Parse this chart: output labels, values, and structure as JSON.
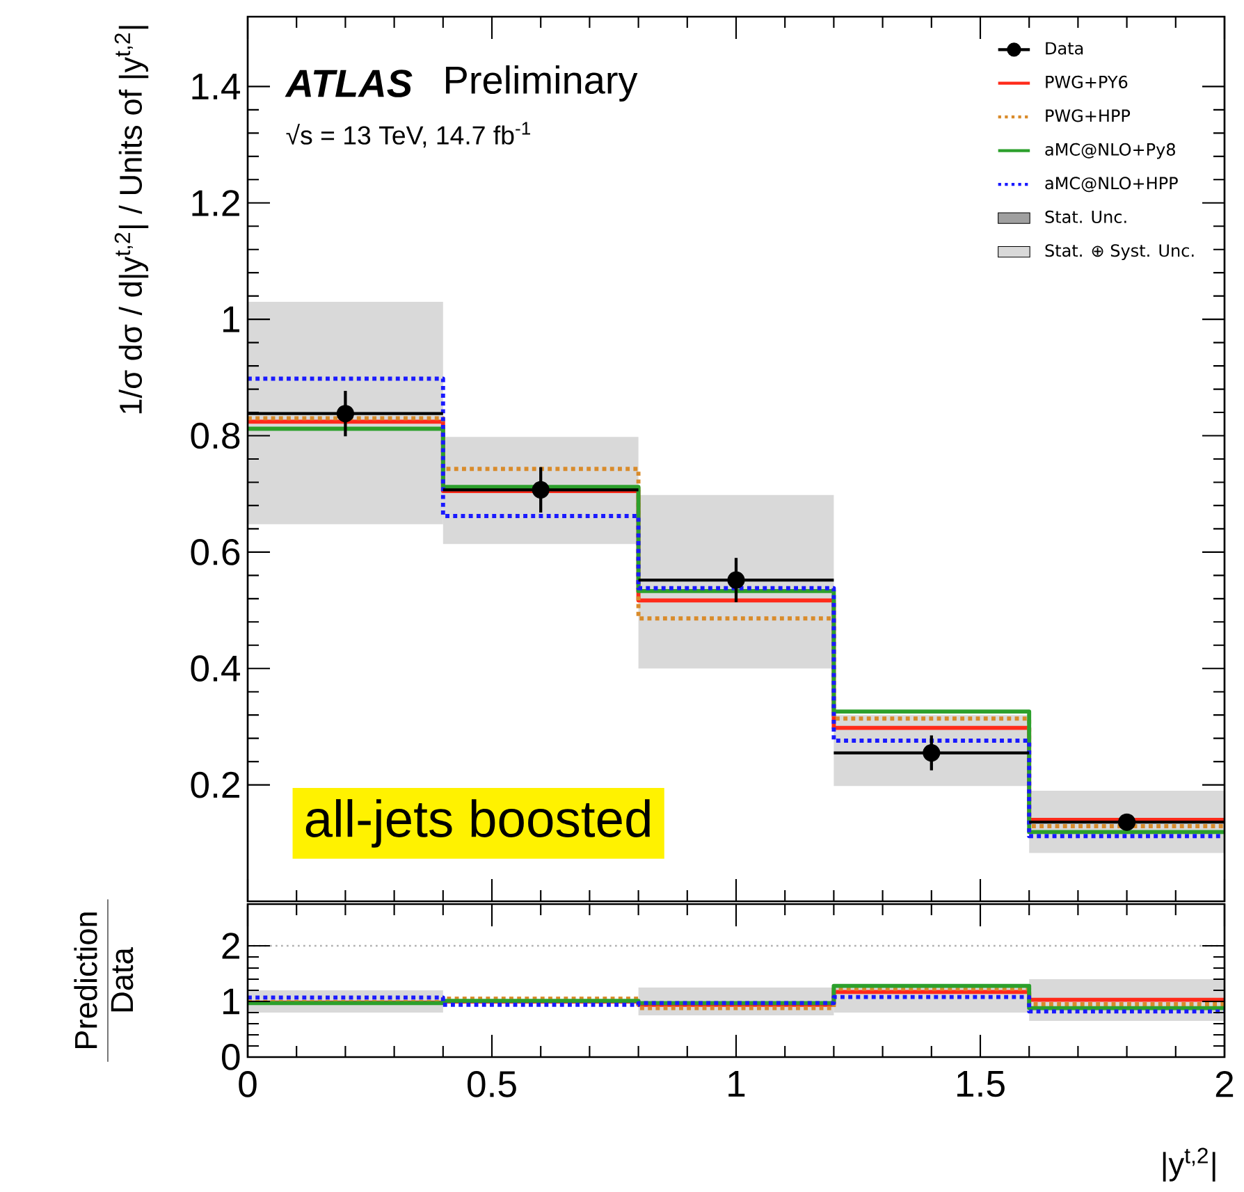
{
  "chart_data": [
    {
      "type": "histogram",
      "ylabel": "1/σ dσ / d|y$^{t,2}$| / Units of |y$^{t,2}$|",
      "xlim": [
        0,
        2
      ],
      "ylim": [
        0,
        1.52
      ],
      "xticks": [
        0,
        0.5,
        1,
        1.5,
        2
      ],
      "yticks": [
        0.2,
        0.4,
        0.6,
        0.8,
        1,
        1.2,
        1.4
      ],
      "tick_labels": "y",
      "legend": "top right",
      "annotations": [
        "ATLAS",
        "Preliminary",
        "√s = 13 TeV, 14.7 fb$^{-1}$",
        "all-jets boosted"
      ],
      "series": [
        {
          "name": "Data",
          "type": "scatter",
          "color": "#000000",
          "marker": "circle",
          "x": [
            0.2,
            0.6,
            1.0,
            1.4,
            1.8
          ],
          "values": [
            0.838,
            0.707,
            0.552,
            0.255,
            0.136
          ],
          "errors": [
            0.039,
            0.039,
            0.038,
            0.03,
            0.01
          ],
          "xerrors": [
            0.2,
            0.2,
            0.2,
            0.2,
            0.2
          ]
        },
        {
          "name": "PWG+PY6",
          "color": "#ff2a1a",
          "line_style": "solid",
          "bins": [
            0,
            0.4,
            0.8,
            1.2,
            1.6,
            2
          ],
          "values": [
            0.824,
            0.705,
            0.517,
            0.298,
            0.14
          ]
        },
        {
          "name": "PWG+HPP",
          "color": "#d98b2b",
          "line_style": "dotted",
          "bins": [
            0,
            0.4,
            0.8,
            1.2,
            1.6,
            2
          ],
          "values": [
            0.83,
            0.743,
            0.486,
            0.314,
            0.129
          ]
        },
        {
          "name": "aMC@NLO+Py8",
          "color": "#2ca02c",
          "line_style": "solid",
          "bins": [
            0,
            0.4,
            0.8,
            1.2,
            1.6,
            2
          ],
          "values": [
            0.812,
            0.712,
            0.533,
            0.326,
            0.119
          ]
        },
        {
          "name": "aMC@NLO+HPP",
          "color": "#1a1aff",
          "line_style": "dotted",
          "bins": [
            0,
            0.4,
            0.8,
            1.2,
            1.6,
            2
          ],
          "values": [
            0.898,
            0.662,
            0.538,
            0.276,
            0.112
          ]
        },
        {
          "name": "Stat. Unc.",
          "type": "bar",
          "color": "#a0a0a0",
          "values": [
            null,
            null,
            null,
            null,
            null
          ]
        },
        {
          "name": "Stat. ⊕ Syst. Unc.",
          "type": "bar",
          "color": "#d9d9d9",
          "x": [
            0.2,
            0.6,
            1.0,
            1.4,
            1.8
          ],
          "base": [
            0.648,
            0.614,
            0.4,
            0.198,
            0.083
          ],
          "values": [
            0.382,
            0.184,
            0.298,
            0.122,
            0.107
          ]
        }
      ]
    },
    {
      "type": "histogram",
      "xlabel": "|y$^{t,2}$|",
      "ylabel": "Prediction",
      "annotations": [
        "Data"
      ],
      "xlim": [
        0,
        2
      ],
      "ylim": [
        0,
        2.75
      ],
      "xticks": [
        0,
        0.5,
        1,
        1.5,
        2
      ],
      "yticks": [
        0,
        1,
        2
      ],
      "ref_lines": [
        {
          "axis": "y",
          "value": 2,
          "color": "#b0b0b0",
          "line_style": "dotted"
        }
      ],
      "series": [
        {
          "type": "bar",
          "color": "#d9d9d9",
          "x": [
            0.2,
            0.6,
            1.0,
            1.4,
            1.8
          ],
          "base": [
            0.8,
            null,
            0.75,
            0.8,
            0.65
          ],
          "values": [
            0.4,
            null,
            0.5,
            0.45,
            0.75
          ]
        },
        {
          "color": "#ff2a1a",
          "line_style": "solid",
          "bins": [
            0,
            0.4,
            0.8,
            1.2,
            1.6,
            2
          ],
          "values": [
            0.98,
            1.0,
            0.94,
            1.17,
            1.03
          ]
        },
        {
          "color": "#d98b2b",
          "line_style": "dotted",
          "bins": [
            0,
            0.4,
            0.8,
            1.2,
            1.6,
            2
          ],
          "values": [
            0.99,
            1.05,
            0.88,
            1.23,
            0.95
          ]
        },
        {
          "color": "#2ca02c",
          "line_style": "solid",
          "bins": [
            0,
            0.4,
            0.8,
            1.2,
            1.6,
            2
          ],
          "values": [
            0.97,
            1.01,
            0.97,
            1.28,
            0.88
          ]
        },
        {
          "color": "#1a1aff",
          "line_style": "dotted",
          "bins": [
            0,
            0.4,
            0.8,
            1.2,
            1.6,
            2
          ],
          "values": [
            1.07,
            0.94,
            0.97,
            1.08,
            0.82
          ]
        }
      ]
    }
  ]
}
